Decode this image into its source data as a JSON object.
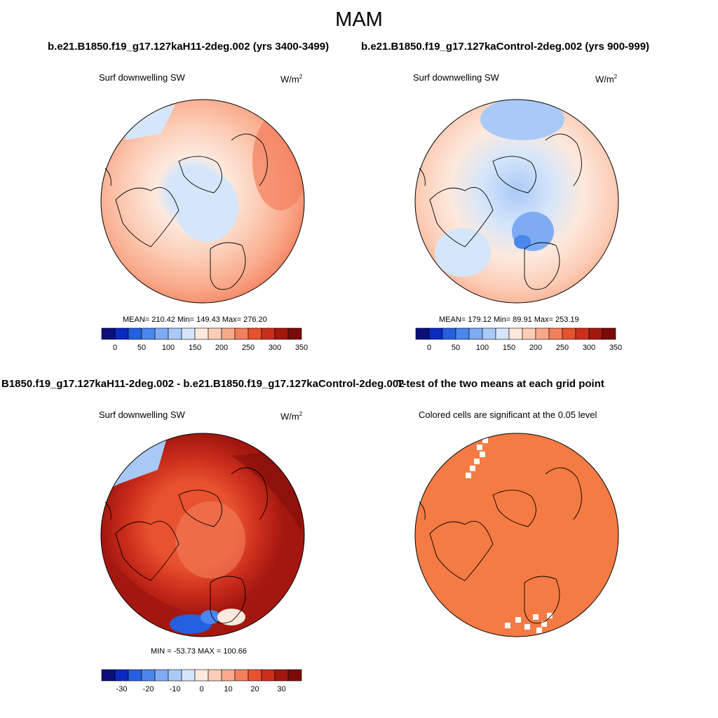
{
  "title": "MAM",
  "panels": [
    {
      "header": "b.e21.B1850.f19_g17.127kaH11-2deg.002 (yrs 3400-3499)",
      "left_label": "Surf downwelling SW",
      "units_base": "W/m",
      "units_exp": "2",
      "stats": "MEAN= 210.42  Min= 149.43  Max= 276.20",
      "colorbar_ticks": [
        "0",
        "50",
        "100",
        "150",
        "200",
        "250",
        "300",
        "350"
      ]
    },
    {
      "header": "b.e21.B1850.f19_g17.127kaControl-2deg.002 (yrs 900-999)",
      "left_label": "Surf downwelling SW",
      "units_base": "W/m",
      "units_exp": "2",
      "stats": "MEAN= 179.12  Min=  89.91  Max= 253.19",
      "colorbar_ticks": [
        "0",
        "50",
        "100",
        "150",
        "200",
        "250",
        "300",
        "350"
      ]
    },
    {
      "header": "B1850.f19_g17.127kaH11-2deg.002 - b.e21.B1850.f19_g17.127kaControl-2deg.002",
      "left_label": "Surf downwelling SW",
      "units_base": "W/m",
      "units_exp": "2",
      "stats": "MIN = -53.73 MAX = 100.66",
      "colorbar_ticks": [
        "-30",
        "-20",
        "-10",
        "0",
        "10",
        "20",
        "30"
      ]
    },
    {
      "header": "T-test of the two means at each grid point",
      "left_label": "Colored cells are significant at the 0.05 level"
    }
  ],
  "colors": {
    "abs_scale": [
      "#0c0f7a",
      "#0a2ac2",
      "#2460e0",
      "#4a86ee",
      "#7fabf4",
      "#a9c9f7",
      "#d6e6fa",
      "#fde9dd",
      "#fccdb6",
      "#f9a98a",
      "#f47f5c",
      "#e8522f",
      "#cc2e1c",
      "#a3170f",
      "#7a0b08"
    ],
    "diff_scale": [
      "#0c0f7a",
      "#0a2ac2",
      "#2460e0",
      "#4a86ee",
      "#7fabf4",
      "#a9c9f7",
      "#d6e6fa",
      "#fde9dd",
      "#fccdb6",
      "#f9a98a",
      "#f47f5c",
      "#e8522f",
      "#cc2e1c",
      "#a3170f",
      "#7a0b08"
    ],
    "significant_fill": "#f47b43"
  }
}
